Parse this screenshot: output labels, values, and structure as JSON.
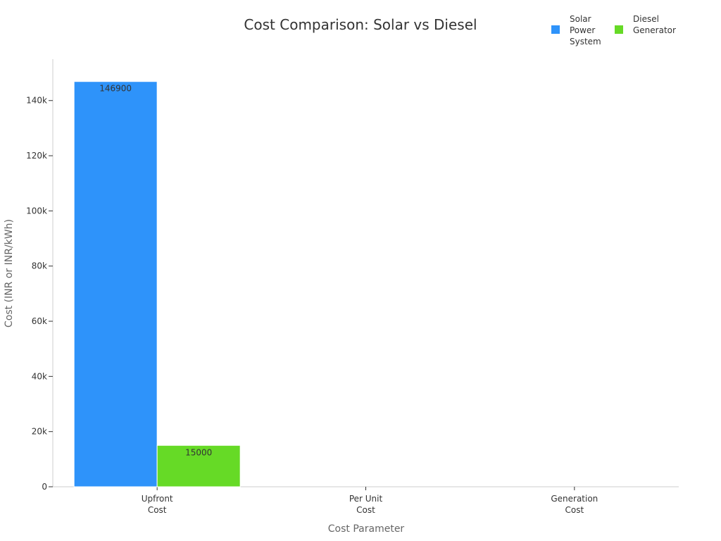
{
  "chart_data": {
    "type": "bar",
    "title": "Cost Comparison: Solar vs Diesel",
    "xlabel": "Cost Parameter",
    "ylabel": "Cost (INR or INR/kWh)",
    "categories": [
      [
        "Upfront",
        "Cost"
      ],
      [
        "Per Unit",
        "Cost"
      ],
      [
        "Generation",
        "Cost"
      ]
    ],
    "series": [
      {
        "name": [
          "Solar",
          "Power",
          "System"
        ],
        "color": "#2e93fa",
        "values": [
          146900,
          0,
          0
        ],
        "labels": [
          "146900",
          "",
          ""
        ]
      },
      {
        "name": [
          "Diesel",
          "Generator"
        ],
        "color": "#66da26",
        "values": [
          15000,
          0,
          0
        ],
        "labels": [
          "15000",
          "",
          ""
        ]
      }
    ],
    "ylim": [
      0,
      155000
    ],
    "yticks": [
      0,
      20000,
      40000,
      60000,
      80000,
      100000,
      120000,
      140000
    ],
    "ytick_labels": [
      "0",
      "20k",
      "40k",
      "60k",
      "80k",
      "100k",
      "120k",
      "140k"
    ],
    "legend_position": "top-right",
    "grid": false
  }
}
